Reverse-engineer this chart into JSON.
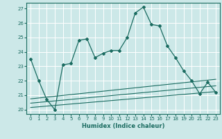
{
  "xlabel": "Humidex (Indice chaleur)",
  "ylabel": "",
  "background_color": "#cce8e8",
  "grid_color": "#ffffff",
  "line_color": "#1a6b60",
  "xlim": [
    -0.5,
    23.5
  ],
  "ylim": [
    19.7,
    27.4
  ],
  "yticks": [
    20,
    21,
    22,
    23,
    24,
    25,
    26,
    27
  ],
  "xticks": [
    0,
    1,
    2,
    3,
    4,
    5,
    6,
    7,
    8,
    9,
    10,
    11,
    12,
    13,
    14,
    15,
    16,
    17,
    18,
    19,
    20,
    21,
    22,
    23
  ],
  "main_line": {
    "x": [
      0,
      1,
      2,
      3,
      4,
      5,
      6,
      7,
      8,
      9,
      10,
      11,
      12,
      13,
      14,
      15,
      16,
      17,
      18,
      19,
      20,
      21,
      22,
      23
    ],
    "y": [
      23.5,
      22.0,
      20.7,
      20.0,
      23.1,
      23.2,
      24.8,
      24.9,
      23.6,
      23.9,
      24.1,
      24.1,
      25.0,
      26.7,
      27.1,
      25.9,
      25.8,
      24.4,
      23.6,
      22.7,
      22.0,
      21.1,
      21.9,
      21.2
    ]
  },
  "flat_lines": [
    {
      "x": [
        0,
        23
      ],
      "y": [
        20.15,
        21.25
      ]
    },
    {
      "x": [
        0,
        23
      ],
      "y": [
        20.45,
        21.65
      ]
    },
    {
      "x": [
        0,
        23
      ],
      "y": [
        20.75,
        22.1
      ]
    }
  ],
  "tick_fontsize": 5.0,
  "xlabel_fontsize": 6.0
}
